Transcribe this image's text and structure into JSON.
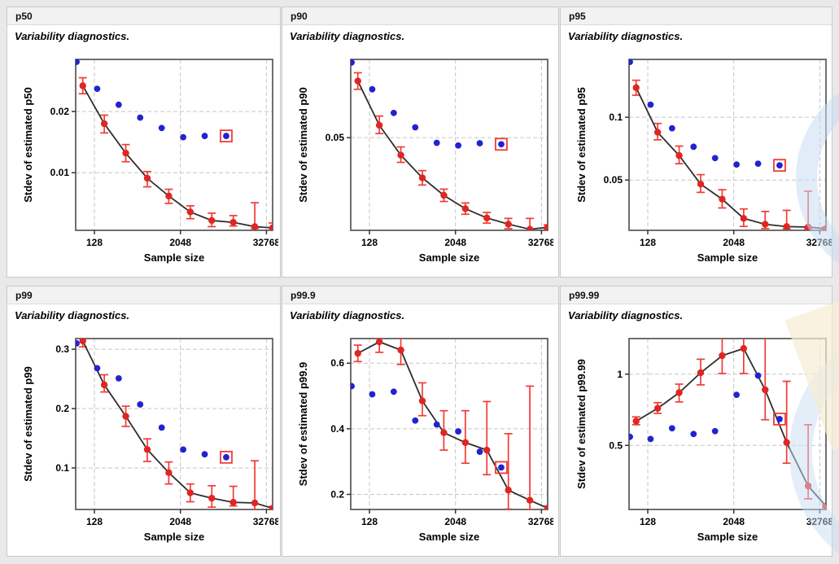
{
  "window": {
    "background": "#e9e9e9"
  },
  "style": {
    "red": "#e02622",
    "red_whisker": "#f23b34",
    "blue": "#2222d2",
    "line": "#2e2e2e",
    "frame": "#5f5f5f",
    "grid": "#c5c5c5",
    "tick": "#333333",
    "header_bg": "#f2f2f2",
    "panel_border": "#c9c9c9",
    "watermark_blue": "rgba(201,221,243,0.55)",
    "watermark_cream": "rgba(246,237,212,0.70)"
  },
  "chart_data": [
    {
      "type": "line+scatter+errorbar",
      "title": "p50",
      "subtitle": "Variability diagnostics.",
      "xlabel": "Sample size",
      "ylabel": "Stdev of estimated p50",
      "xlim": [
        70,
        40000
      ],
      "xticks": [
        128,
        2048,
        32768
      ],
      "xtick_labels": [
        "128",
        "2048",
        "32768"
      ],
      "ylim": [
        0.0006,
        0.0285
      ],
      "yticks": [
        0.01,
        0.02
      ],
      "ytick_labels": [
        "0.01",
        "0.02"
      ],
      "series": {
        "red_series": {
          "x": [
            88,
            176,
            352,
            704,
            1408,
            2816,
            5632,
            11264,
            22528,
            45056
          ],
          "y": [
            0.0242,
            0.018,
            0.0132,
            0.0091,
            0.0062,
            0.0036,
            0.0022,
            0.0019,
            0.0012,
            0.001
          ],
          "lo": [
            0.0229,
            0.0165,
            0.0118,
            0.0077,
            0.005,
            0.0025,
            0.0012,
            0.0013,
            0.0009,
            0.0007
          ],
          "hi": [
            0.0255,
            0.0194,
            0.0146,
            0.0102,
            0.0073,
            0.0046,
            0.0034,
            0.003,
            0.0051,
            0.0018
          ]
        },
        "blue_series": {
          "x": [
            72,
            140,
            280,
            560,
            1120,
            2240,
            4480,
            8960
          ],
          "y": [
            0.0281,
            0.0237,
            0.0211,
            0.019,
            0.0173,
            0.0158,
            0.016,
            0.016
          ]
        }
      },
      "highlight": {
        "series": "blue_series",
        "index": 7
      }
    },
    {
      "type": "line+scatter+errorbar",
      "title": "p90",
      "subtitle": "Variability diagnostics.",
      "xlabel": "Sample size",
      "ylabel": "Stdev of estimated p90",
      "xlim": [
        70,
        40000
      ],
      "xticks": [
        128,
        2048,
        32768
      ],
      "xtick_labels": [
        "128",
        "2048",
        "32768"
      ],
      "ylim": [
        0.005,
        0.088
      ],
      "yticks": [
        0.05
      ],
      "ytick_labels": [
        "0.05"
      ],
      "series": {
        "red_series": {
          "x": [
            88,
            176,
            352,
            704,
            1408,
            2816,
            5632,
            11264,
            22528,
            45056
          ],
          "y": [
            0.0775,
            0.056,
            0.0415,
            0.0305,
            0.022,
            0.0155,
            0.011,
            0.008,
            0.0055,
            0.0065
          ],
          "lo": [
            0.0735,
            0.052,
            0.038,
            0.027,
            0.019,
            0.0128,
            0.0085,
            0.0058,
            0.0042,
            0.0055
          ],
          "hi": [
            0.0815,
            0.0605,
            0.0455,
            0.034,
            0.025,
            0.0183,
            0.0137,
            0.0108,
            0.0108,
            0.0076
          ]
        },
        "blue_series": {
          "x": [
            72,
            140,
            280,
            560,
            1120,
            2240,
            4480,
            8960
          ],
          "y": [
            0.0865,
            0.0735,
            0.062,
            0.055,
            0.0475,
            0.0462,
            0.0473,
            0.0468
          ]
        }
      },
      "highlight": {
        "series": "blue_series",
        "index": 7
      }
    },
    {
      "type": "line+scatter+errorbar",
      "title": "p95",
      "subtitle": "Variability diagnostics.",
      "xlabel": "Sample size",
      "ylabel": "Stdev of estimated p95",
      "xlim": [
        70,
        40000
      ],
      "xticks": [
        128,
        2048,
        32768
      ],
      "xtick_labels": [
        "128",
        "2048",
        "32768"
      ],
      "ylim": [
        0.01,
        0.146
      ],
      "yticks": [
        0.05,
        0.1
      ],
      "ytick_labels": [
        "0.05",
        "0.1"
      ],
      "series": {
        "red_series": {
          "x": [
            88,
            176,
            352,
            704,
            1408,
            2816,
            5632,
            11264,
            22528,
            45056
          ],
          "y": [
            0.1235,
            0.088,
            0.0695,
            0.0468,
            0.0348,
            0.0195,
            0.0148,
            0.013,
            0.0126,
            0.0113
          ],
          "lo": [
            0.1175,
            0.082,
            0.063,
            0.0402,
            0.0278,
            0.0131,
            0.0114,
            0.0112,
            0.0112,
            0.0104
          ],
          "hi": [
            0.1294,
            0.095,
            0.077,
            0.0543,
            0.0423,
            0.027,
            0.025,
            0.0259,
            0.0412,
            0.0124
          ]
        },
        "blue_series": {
          "x": [
            72,
            140,
            280,
            560,
            1120,
            2240,
            4480,
            8960
          ],
          "y": [
            0.144,
            0.11,
            0.0912,
            0.0765,
            0.0675,
            0.0624,
            0.063,
            0.0617
          ]
        }
      },
      "highlight": {
        "series": "blue_series",
        "index": 7
      }
    },
    {
      "type": "line+scatter+errorbar",
      "title": "p99",
      "subtitle": "Variability diagnostics.",
      "xlabel": "Sample size",
      "ylabel": "Stdev of estimated p99",
      "xlim": [
        70,
        40000
      ],
      "xticks": [
        128,
        2048,
        32768
      ],
      "xtick_labels": [
        "128",
        "2048",
        "32768"
      ],
      "ylim": [
        0.03,
        0.318
      ],
      "yticks": [
        0.1,
        0.2,
        0.3
      ],
      "ytick_labels": [
        "0.1",
        "0.2",
        "0.3"
      ],
      "series": {
        "red_series": {
          "x": [
            88,
            176,
            352,
            704,
            1408,
            2816,
            5632,
            11264,
            22528,
            45056
          ],
          "y": [
            0.314,
            0.24,
            0.187,
            0.131,
            0.092,
            0.058,
            0.049,
            0.042,
            0.041,
            0.032
          ],
          "lo": [
            0.304,
            0.228,
            0.17,
            0.111,
            0.073,
            0.043,
            0.034,
            0.036,
            0.03,
            0.029
          ],
          "hi": [
            0.318,
            0.257,
            0.204,
            0.149,
            0.11,
            0.073,
            0.07,
            0.069,
            0.112,
            0.035
          ]
        },
        "blue_series": {
          "x": [
            72,
            140,
            280,
            560,
            1120,
            2240,
            4480,
            8960
          ],
          "y": [
            0.31,
            0.268,
            0.251,
            0.207,
            0.168,
            0.131,
            0.123,
            0.118
          ]
        }
      },
      "highlight": {
        "series": "blue_series",
        "index": 7
      }
    },
    {
      "type": "line+scatter+errorbar",
      "title": "p99.9",
      "subtitle": "Variability diagnostics.",
      "xlabel": "Sample size",
      "ylabel": "Stdev of estimated p99.9",
      "xlim": [
        70,
        40000
      ],
      "xticks": [
        128,
        2048,
        32768
      ],
      "xtick_labels": [
        "128",
        "2048",
        "32768"
      ],
      "ylim": [
        0.154,
        0.675
      ],
      "yticks": [
        0.2,
        0.4,
        0.6
      ],
      "ytick_labels": [
        "0.2",
        "0.4",
        "0.6"
      ],
      "series": {
        "red_series": {
          "x": [
            88,
            176,
            352,
            704,
            1408,
            2816,
            5632,
            11264,
            22528,
            45056
          ],
          "y": [
            0.63,
            0.665,
            0.64,
            0.485,
            0.388,
            0.358,
            0.335,
            0.213,
            0.182,
            0.158
          ],
          "lo": [
            0.605,
            0.633,
            0.596,
            0.44,
            0.335,
            0.295,
            0.26,
            0.155,
            0.154,
            0.152
          ],
          "hi": [
            0.655,
            0.676,
            0.676,
            0.54,
            0.455,
            0.455,
            0.483,
            0.385,
            0.53,
            0.164
          ]
        },
        "blue_series": {
          "x": [
            72,
            140,
            280,
            560,
            1120,
            2240,
            4480,
            8960
          ],
          "y": [
            0.53,
            0.505,
            0.513,
            0.425,
            0.413,
            0.392,
            0.33,
            0.282
          ]
        }
      },
      "highlight": {
        "series": "blue_series",
        "index": 7
      }
    },
    {
      "type": "line+scatter+errorbar",
      "title": "p99.99",
      "subtitle": "Variability diagnostics.",
      "xlabel": "Sample size",
      "ylabel": "Stdev of estimated p99.99",
      "xlim": [
        70,
        40000
      ],
      "xticks": [
        128,
        2048,
        32768
      ],
      "xtick_labels": [
        "128",
        "2048",
        "32768"
      ],
      "ylim": [
        0.05,
        1.25
      ],
      "yticks": [
        0.5,
        1
      ],
      "ytick_labels": [
        "0.5",
        "1"
      ],
      "series": {
        "red_series": {
          "x": [
            88,
            176,
            352,
            704,
            1408,
            2816,
            5632,
            11264,
            22528,
            45056
          ],
          "y": [
            0.67,
            0.76,
            0.87,
            1.01,
            1.13,
            1.18,
            0.89,
            0.52,
            0.215,
            0.073
          ],
          "lo": [
            0.645,
            0.725,
            0.805,
            0.925,
            1.005,
            1.005,
            0.68,
            0.375,
            0.125,
            0.065
          ],
          "hi": [
            0.7,
            0.8,
            0.93,
            1.105,
            1.27,
            1.27,
            1.27,
            0.95,
            0.645,
            0.082
          ]
        },
        "blue_series": {
          "x": [
            72,
            140,
            280,
            560,
            1120,
            2240,
            4480,
            8960
          ],
          "y": [
            0.56,
            0.545,
            0.62,
            0.58,
            0.6,
            0.855,
            0.99,
            0.685
          ]
        }
      },
      "highlight": {
        "series": "blue_series",
        "index": 7
      }
    }
  ]
}
